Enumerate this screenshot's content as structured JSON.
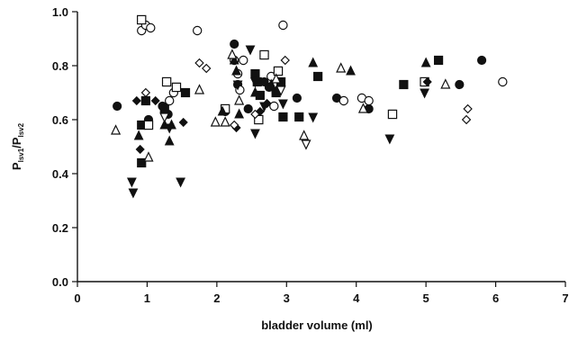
{
  "chart_data": {
    "type": "scatter",
    "xlabel": "bladder volume (ml)",
    "ylabel": {
      "main": "P",
      "sub1": "lsv1",
      "mid": "/P",
      "sub2": "lsv2"
    },
    "xlim": [
      0,
      7
    ],
    "ylim": [
      0,
      1.0
    ],
    "x_ticks": [
      {
        "value": 0,
        "label": "0"
      },
      {
        "value": 1,
        "label": "1"
      },
      {
        "value": 2,
        "label": "2"
      },
      {
        "value": 3,
        "label": "3"
      },
      {
        "value": 4,
        "label": "4"
      },
      {
        "value": 5,
        "label": "5"
      },
      {
        "value": 6,
        "label": "6"
      },
      {
        "value": 7,
        "label": "7"
      }
    ],
    "y_ticks": [
      {
        "value": 0.0,
        "label": "0.0"
      },
      {
        "value": 0.2,
        "label": "0.2"
      },
      {
        "value": 0.4,
        "label": "0.4"
      },
      {
        "value": 0.6,
        "label": "0.6"
      },
      {
        "value": 0.8,
        "label": "0.8"
      },
      {
        "value": 1.0,
        "label": "1.0"
      }
    ],
    "grid": false,
    "legend": "none",
    "series": [
      {
        "marker": "circle-filled",
        "points": [
          [
            0.57,
            0.65
          ],
          [
            1.02,
            0.6
          ],
          [
            1.22,
            0.65
          ],
          [
            1.3,
            0.62
          ],
          [
            2.12,
            0.63
          ],
          [
            2.25,
            0.88
          ],
          [
            2.3,
            0.73
          ],
          [
            2.45,
            0.64
          ],
          [
            2.68,
            0.74
          ],
          [
            2.75,
            0.72
          ],
          [
            2.85,
            0.7
          ],
          [
            3.15,
            0.68
          ],
          [
            3.72,
            0.68
          ],
          [
            4.18,
            0.64
          ],
          [
            5.48,
            0.73
          ],
          [
            5.8,
            0.82
          ]
        ]
      },
      {
        "marker": "circle-open",
        "points": [
          [
            0.92,
            0.93
          ],
          [
            0.98,
            0.95
          ],
          [
            1.05,
            0.94
          ],
          [
            1.32,
            0.67
          ],
          [
            1.38,
            0.7
          ],
          [
            1.72,
            0.93
          ],
          [
            2.25,
            0.82
          ],
          [
            2.3,
            0.77
          ],
          [
            2.33,
            0.71
          ],
          [
            2.38,
            0.82
          ],
          [
            2.82,
            0.65
          ],
          [
            2.95,
            0.95
          ],
          [
            2.78,
            0.76
          ],
          [
            3.82,
            0.67
          ],
          [
            4.08,
            0.68
          ],
          [
            4.18,
            0.67
          ],
          [
            6.1,
            0.74
          ]
        ]
      },
      {
        "marker": "square-filled",
        "points": [
          [
            0.92,
            0.58
          ],
          [
            0.98,
            0.67
          ],
          [
            0.92,
            0.44
          ],
          [
            1.25,
            0.64
          ],
          [
            1.55,
            0.7
          ],
          [
            2.55,
            0.77
          ],
          [
            2.58,
            0.74
          ],
          [
            2.62,
            0.69
          ],
          [
            2.85,
            0.7
          ],
          [
            2.92,
            0.74
          ],
          [
            2.95,
            0.61
          ],
          [
            3.18,
            0.61
          ],
          [
            3.45,
            0.76
          ],
          [
            5.18,
            0.82
          ],
          [
            4.68,
            0.73
          ]
        ]
      },
      {
        "marker": "square-open",
        "points": [
          [
            0.92,
            0.97
          ],
          [
            1.02,
            0.58
          ],
          [
            1.28,
            0.74
          ],
          [
            1.42,
            0.72
          ],
          [
            2.12,
            0.64
          ],
          [
            2.68,
            0.84
          ],
          [
            2.6,
            0.6
          ],
          [
            2.88,
            0.78
          ],
          [
            4.52,
            0.62
          ],
          [
            4.98,
            0.74
          ]
        ]
      },
      {
        "marker": "triangle-up-filled",
        "points": [
          [
            0.88,
            0.54
          ],
          [
            1.25,
            0.58
          ],
          [
            1.32,
            0.52
          ],
          [
            1.35,
            0.58
          ],
          [
            2.08,
            0.63
          ],
          [
            2.25,
            0.82
          ],
          [
            2.28,
            0.78
          ],
          [
            2.32,
            0.62
          ],
          [
            2.55,
            0.7
          ],
          [
            2.78,
            0.73
          ],
          [
            2.88,
            0.72
          ],
          [
            3.38,
            0.81
          ],
          [
            3.92,
            0.78
          ],
          [
            5.0,
            0.81
          ]
        ]
      },
      {
        "marker": "triangle-up-open",
        "points": [
          [
            0.55,
            0.56
          ],
          [
            1.02,
            0.46
          ],
          [
            1.75,
            0.71
          ],
          [
            1.98,
            0.59
          ],
          [
            2.12,
            0.59
          ],
          [
            2.22,
            0.84
          ],
          [
            2.32,
            0.67
          ],
          [
            2.85,
            0.75
          ],
          [
            3.25,
            0.54
          ],
          [
            3.78,
            0.79
          ],
          [
            4.1,
            0.64
          ],
          [
            5.28,
            0.73
          ]
        ]
      },
      {
        "marker": "triangle-down-filled",
        "points": [
          [
            0.78,
            0.37
          ],
          [
            0.8,
            0.33
          ],
          [
            1.32,
            0.57
          ],
          [
            1.48,
            0.37
          ],
          [
            2.3,
            0.73
          ],
          [
            2.48,
            0.86
          ],
          [
            2.55,
            0.74
          ],
          [
            2.55,
            0.55
          ],
          [
            2.68,
            0.65
          ],
          [
            2.95,
            0.66
          ],
          [
            3.38,
            0.61
          ],
          [
            4.48,
            0.53
          ],
          [
            4.98,
            0.7
          ]
        ]
      },
      {
        "marker": "triangle-down-open",
        "points": [
          [
            1.25,
            0.61
          ],
          [
            2.92,
            0.71
          ],
          [
            3.28,
            0.51
          ]
        ]
      },
      {
        "marker": "diamond-filled",
        "points": [
          [
            0.85,
            0.67
          ],
          [
            0.9,
            0.49
          ],
          [
            1.12,
            0.67
          ],
          [
            1.52,
            0.59
          ],
          [
            2.28,
            0.57
          ],
          [
            2.62,
            0.63
          ],
          [
            2.72,
            0.66
          ],
          [
            5.02,
            0.74
          ]
        ]
      },
      {
        "marker": "diamond-open",
        "points": [
          [
            0.98,
            0.7
          ],
          [
            1.75,
            0.81
          ],
          [
            1.85,
            0.79
          ],
          [
            2.25,
            0.58
          ],
          [
            2.55,
            0.62
          ],
          [
            2.98,
            0.82
          ],
          [
            5.58,
            0.6
          ],
          [
            5.6,
            0.64
          ]
        ]
      }
    ]
  }
}
